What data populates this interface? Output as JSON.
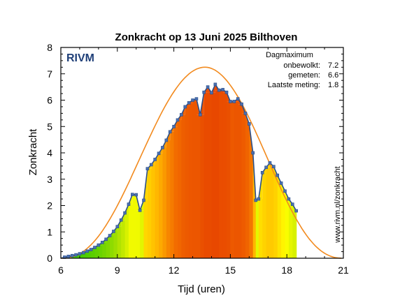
{
  "chart_data": {
    "type": "bar",
    "title": "Zonkracht op 13 Juni 2025 Bilthoven",
    "xlabel": "Tijd (uren)",
    "ylabel": "Zonkracht",
    "xlim": [
      6,
      21
    ],
    "ylim": [
      0,
      8
    ],
    "x_ticks": [
      6,
      9,
      12,
      15,
      18,
      21
    ],
    "y_ticks": [
      0,
      1,
      2,
      3,
      4,
      5,
      6,
      7,
      8
    ],
    "grid": false,
    "logo_text": "RIVM",
    "info_box": {
      "heading": "Dagmaximum",
      "rows": [
        {
          "label": "onbewolkt:",
          "value": "7.2"
        },
        {
          "label": "gemeten:",
          "value": "6.6"
        },
        {
          "label": "Laatste meting:",
          "value": "1.8"
        }
      ]
    },
    "source_text": "www.rivm.nl/zonkracht",
    "clear_sky_curve": {
      "color": "#f28a1e",
      "start_hour": 6,
      "peak_hour": 13.65,
      "peak_value": 7.25,
      "end_hour": 21
    },
    "measured_series": {
      "line_color": "#2b4f8a",
      "marker_color": "#4a6fb0",
      "color_scale": [
        "#37c800",
        "#a8e000",
        "#ffff00",
        "#ffb800",
        "#f26a00",
        "#e84800"
      ],
      "points": [
        [
          6.0,
          0.0
        ],
        [
          6.2,
          0.04
        ],
        [
          6.4,
          0.07
        ],
        [
          6.6,
          0.1
        ],
        [
          6.8,
          0.13
        ],
        [
          7.0,
          0.17
        ],
        [
          7.2,
          0.21
        ],
        [
          7.4,
          0.27
        ],
        [
          7.6,
          0.33
        ],
        [
          7.8,
          0.41
        ],
        [
          8.0,
          0.5
        ],
        [
          8.2,
          0.6
        ],
        [
          8.4,
          0.72
        ],
        [
          8.6,
          0.86
        ],
        [
          8.8,
          1.02
        ],
        [
          9.0,
          1.2
        ],
        [
          9.2,
          1.45
        ],
        [
          9.4,
          1.72
        ],
        [
          9.6,
          2.05
        ],
        [
          9.8,
          2.42
        ],
        [
          10.0,
          2.41
        ],
        [
          10.2,
          1.82
        ],
        [
          10.4,
          2.2
        ],
        [
          10.6,
          3.4
        ],
        [
          10.8,
          3.55
        ],
        [
          11.0,
          3.75
        ],
        [
          11.2,
          3.98
        ],
        [
          11.4,
          4.2
        ],
        [
          11.6,
          4.48
        ],
        [
          11.8,
          4.8
        ],
        [
          12.0,
          5.0
        ],
        [
          12.2,
          5.25
        ],
        [
          12.4,
          5.45
        ],
        [
          12.6,
          5.75
        ],
        [
          12.8,
          5.9
        ],
        [
          13.0,
          6.0
        ],
        [
          13.2,
          6.05
        ],
        [
          13.4,
          5.45
        ],
        [
          13.6,
          6.3
        ],
        [
          13.8,
          6.5
        ],
        [
          14.0,
          6.28
        ],
        [
          14.2,
          6.6
        ],
        [
          14.4,
          6.38
        ],
        [
          14.6,
          6.4
        ],
        [
          14.8,
          6.3
        ],
        [
          15.0,
          5.95
        ],
        [
          15.2,
          5.95
        ],
        [
          15.4,
          6.05
        ],
        [
          15.6,
          5.85
        ],
        [
          15.8,
          5.5
        ],
        [
          16.0,
          5.1
        ],
        [
          16.2,
          4.0
        ],
        [
          16.35,
          2.2
        ],
        [
          16.5,
          2.25
        ],
        [
          16.7,
          3.25
        ],
        [
          16.9,
          3.45
        ],
        [
          17.1,
          3.62
        ],
        [
          17.3,
          3.48
        ],
        [
          17.5,
          3.15
        ],
        [
          17.7,
          2.85
        ],
        [
          17.9,
          2.55
        ],
        [
          18.1,
          2.25
        ],
        [
          18.3,
          2.05
        ],
        [
          18.5,
          1.8
        ]
      ]
    }
  }
}
